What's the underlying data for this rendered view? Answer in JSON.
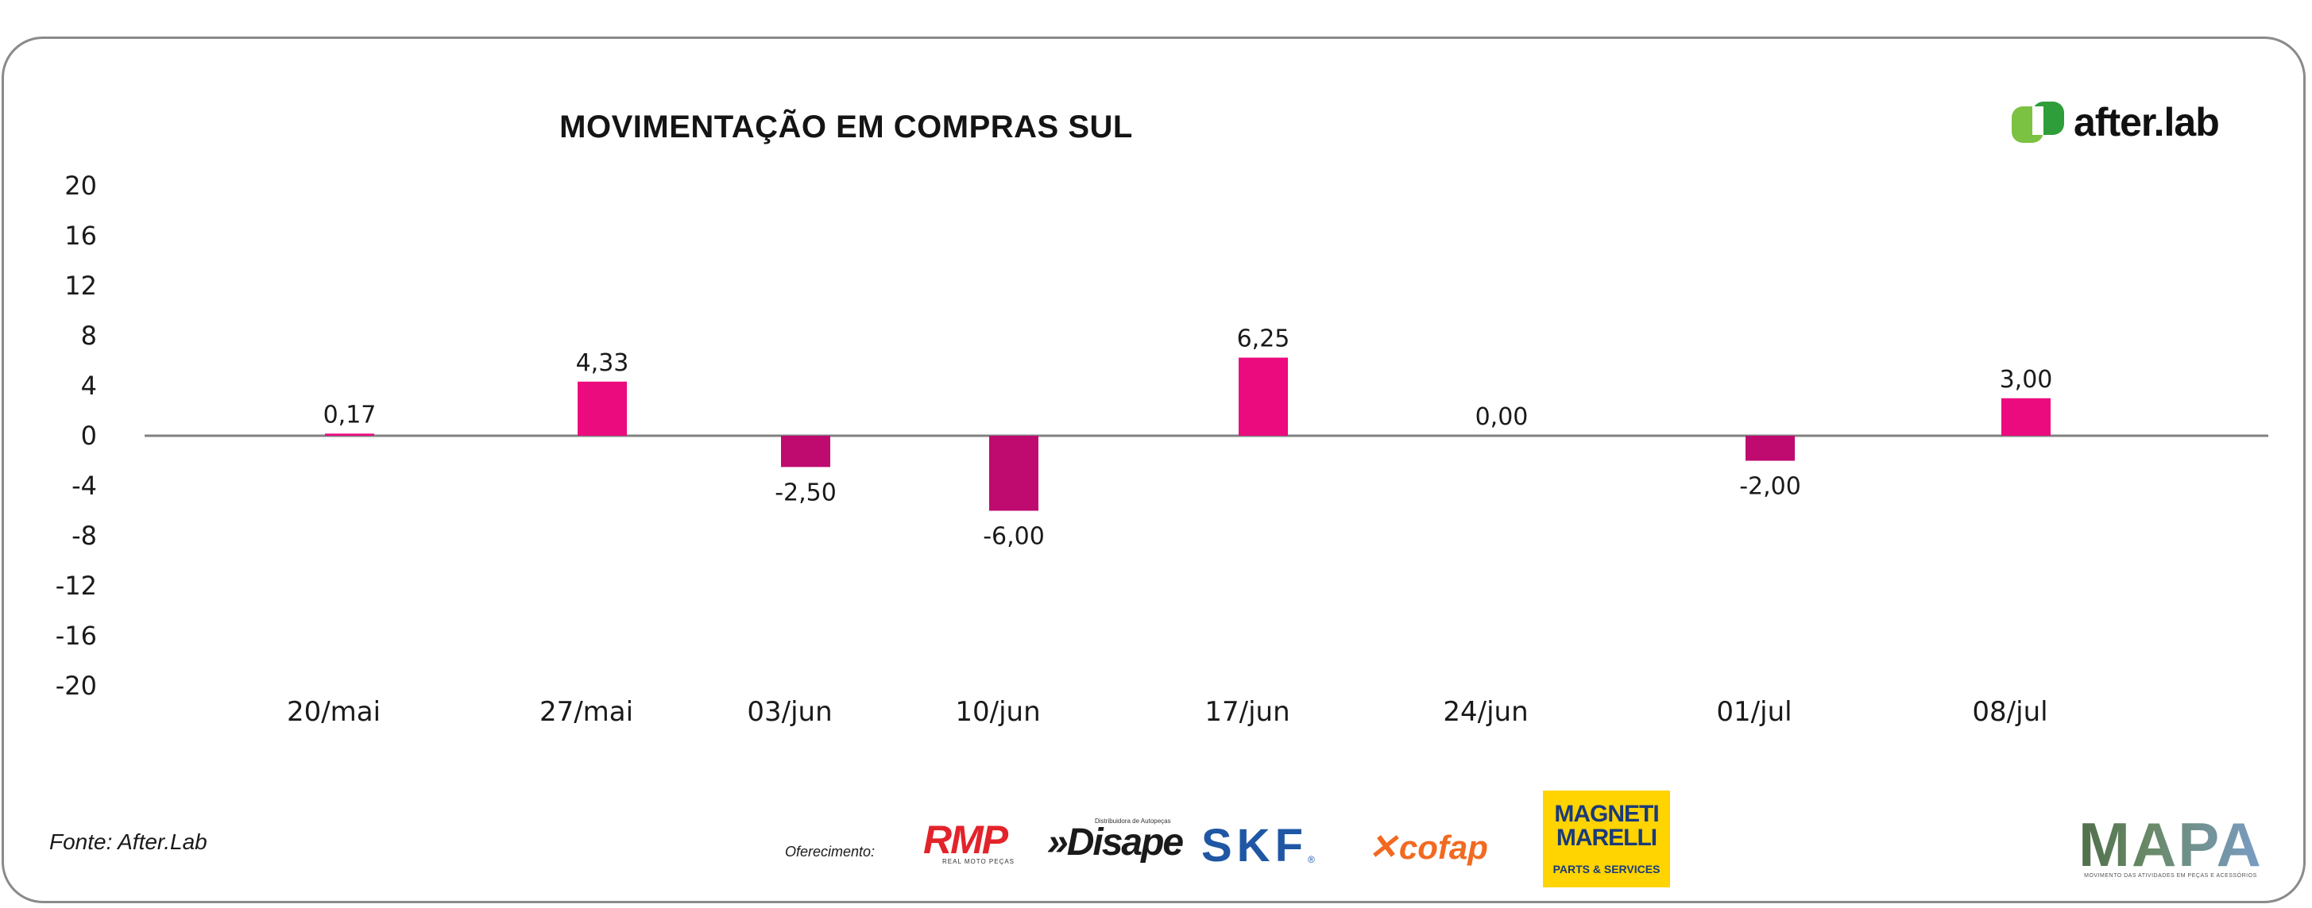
{
  "chart_data": {
    "type": "bar",
    "title": "MOVIMENTAÇÃO EM COMPRAS SUL",
    "xlabel": "",
    "ylabel": "",
    "categories": [
      "20/mai",
      "27/mai",
      "03/jun",
      "10/jun",
      "17/jun",
      "24/jun",
      "01/jul",
      "08/jul"
    ],
    "values": [
      0.17,
      4.33,
      -2.5,
      -6.0,
      6.25,
      0.0,
      -2.0,
      3.0
    ],
    "data_labels": [
      "0,17",
      "4,33",
      "-2,50",
      "-6,00",
      "6,25",
      "0,00",
      "-2,00",
      "3,00"
    ],
    "ylim": [
      -20,
      20
    ],
    "yticks": [
      20,
      16,
      12,
      8,
      4,
      0,
      -4,
      -8,
      -12,
      -16,
      -20
    ],
    "grid": false,
    "colors": {
      "positive": "#ec0a7f",
      "negative": "#bf0a6f",
      "axis": "#808080"
    }
  },
  "source": "Fonte: After.Lab",
  "sponsor_label": "Oferecimento:",
  "brand": {
    "afterlab": "after.lab",
    "afterlab_colors": [
      "#2e8b2e",
      "#7cc242"
    ]
  },
  "sponsors": {
    "rmp": {
      "name": "RMP",
      "tagline": "REAL MOTO PEÇAS"
    },
    "disape": {
      "name": "»Disape",
      "tagline": "Distribuidora de Autopeças"
    },
    "skf": {
      "name": "SKF",
      "mark": "®"
    },
    "cofap": {
      "name": "cofap"
    },
    "magneti": {
      "line1": "MAGNETI",
      "line2": "MARELLI",
      "line3": "PARTS & SERVICES"
    },
    "mapa": {
      "name": "MAPA",
      "tagline": "MOVIMENTO DAS ATIVIDADES EM PEÇAS E ACESSÓRIOS"
    }
  }
}
